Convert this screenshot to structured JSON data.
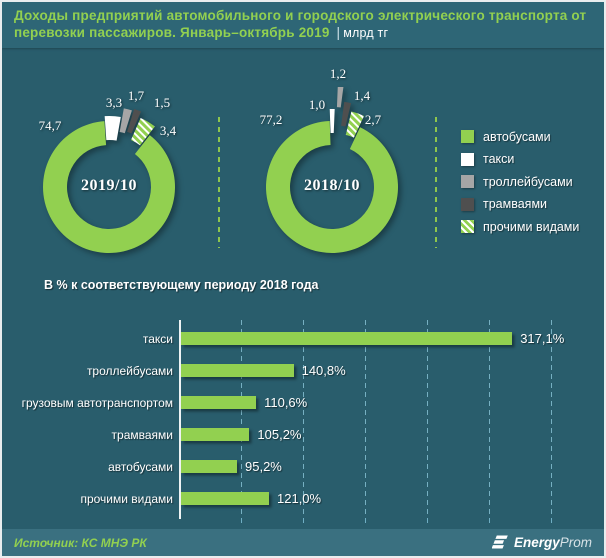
{
  "header": {
    "title": "Доходы предприятий автомобильного и городского электрического транспорта от перевозки пассажиров. Январь–октябрь 2019",
    "pipe": "|",
    "unit": "млрд тг"
  },
  "colors": {
    "accent_green": "#92d050",
    "slice_white": "#ffffff",
    "slice_gray": "#a6a6a6",
    "slice_dark": "#4f4f4f",
    "header_bg": "#2e6676",
    "body_bg": "#295d6c",
    "footer_bg": "#3a7080",
    "gridline_teal": "#6faec4"
  },
  "legend": {
    "items": [
      {
        "label": "автобусами",
        "color": "#92d050"
      },
      {
        "label": "такси",
        "color": "#ffffff"
      },
      {
        "label": "троллейбусами",
        "color": "#a6a6a6"
      },
      {
        "label": "трамваями",
        "color": "#4f4f4f"
      },
      {
        "label": "прочими видами",
        "color": "hatch"
      }
    ]
  },
  "chart_data": [
    {
      "type": "pie",
      "subtype": "exploded-donut",
      "center_label": "2019/10",
      "unit": "млрд тг",
      "categories": [
        "автобусами",
        "такси",
        "троллейбусами",
        "трамваями",
        "прочими видами"
      ],
      "values": [
        74.7,
        3.3,
        1.7,
        1.5,
        3.4
      ],
      "labels": [
        "74,7",
        "3,3",
        "1,7",
        "1,5",
        "3,4"
      ],
      "palette": [
        "#92d050",
        "#ffffff",
        "#a6a6a6",
        "#4f4f4f",
        "hatch"
      ]
    },
    {
      "type": "pie",
      "subtype": "exploded-donut",
      "center_label": "2018/10",
      "unit": "млрд тг",
      "categories": [
        "автобусами",
        "такси",
        "троллейбусами",
        "трамваями",
        "прочими видами"
      ],
      "values": [
        77.2,
        1.0,
        1.2,
        1.4,
        2.7
      ],
      "labels": [
        "77,2",
        "1,0",
        "1,2",
        "1,4",
        "2,7"
      ],
      "palette": [
        "#92d050",
        "#ffffff",
        "#a6a6a6",
        "#4f4f4f",
        "hatch"
      ]
    },
    {
      "type": "bar",
      "orientation": "horizontal",
      "title": "В % к соответствующему  периоду 2018 года",
      "categories": [
        "такси",
        "троллейбусами",
        "грузовым автотранспортом",
        "трамваями",
        "автобусами",
        "прочими видами"
      ],
      "values": [
        317.1,
        140.8,
        110.6,
        105.2,
        95.2,
        121.0
      ],
      "labels": [
        "317,1%",
        "140,8%",
        "110,6%",
        "105,2%",
        "95,2%",
        "121,0%"
      ],
      "xlim": [
        50,
        350
      ],
      "grid_step": 50,
      "grid": true,
      "legend_position": "none"
    }
  ],
  "footer": {
    "source": "Источник: КС МНЭ РК",
    "brand_bold": "Energy",
    "brand_light": "Prom"
  }
}
